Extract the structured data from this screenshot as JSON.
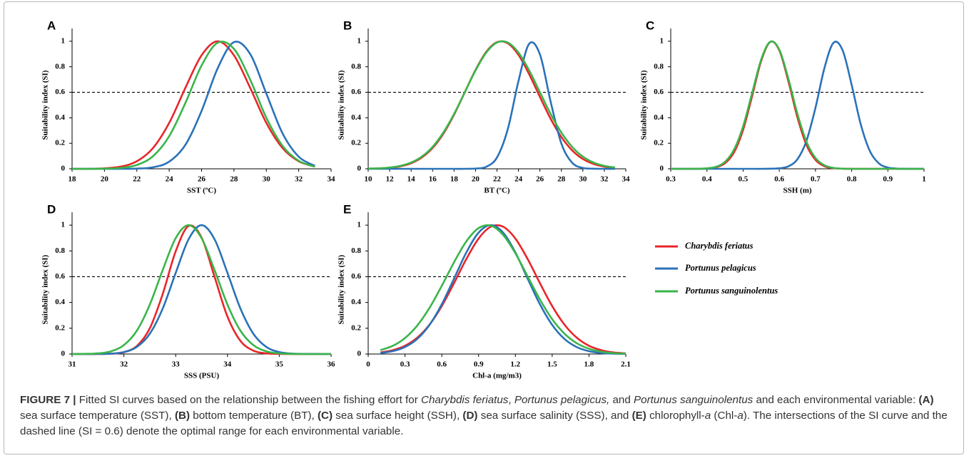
{
  "chart_data": [
    {
      "type": "line",
      "label": "A",
      "xlabel": "SST (ºC)",
      "ylabel": "Suitability index (SI)",
      "x": [
        18,
        19,
        20,
        21,
        22,
        23,
        24,
        25,
        26,
        27,
        28,
        29,
        30,
        31,
        32,
        33
      ],
      "series": [
        {
          "color": "#e8262a",
          "values": [
            0,
            0,
            0.004,
            0.017,
            0.059,
            0.163,
            0.36,
            0.635,
            0.89,
            1,
            0.89,
            0.635,
            0.36,
            0.163,
            0.059,
            0.017
          ]
        },
        {
          "color": "#2a72b8",
          "values": [
            0,
            0,
            0,
            0,
            0.002,
            0.012,
            0.056,
            0.188,
            0.454,
            0.79,
            0.993,
            0.9,
            0.59,
            0.278,
            0.095,
            0.023
          ]
        },
        {
          "color": "#3ab54a",
          "values": [
            0,
            0,
            0.001,
            0.007,
            0.03,
            0.099,
            0.256,
            0.516,
            0.81,
            0.989,
            0.94,
            0.7,
            0.4,
            0.18,
            0.063,
            0.017
          ]
        }
      ],
      "xlim": [
        18,
        34
      ],
      "xticks": [
        18,
        20,
        22,
        24,
        26,
        28,
        30,
        32,
        34
      ],
      "ylim": [
        0,
        1.1
      ],
      "yticks": [
        0,
        0.2,
        0.4,
        0.6,
        0.8,
        1
      ],
      "hline": 0.6
    },
    {
      "type": "line",
      "label": "B",
      "xlabel": "BT (ºC)",
      "ylabel": "Suitability index (SI)",
      "x": [
        10,
        11,
        12,
        13,
        14,
        15,
        16,
        17,
        18,
        19,
        20,
        21,
        22,
        23,
        24,
        25,
        26,
        27,
        28,
        29,
        30,
        31,
        32,
        33
      ],
      "series": [
        {
          "color": "#e8262a",
          "values": [
            0.001,
            0.003,
            0.008,
            0.02,
            0.044,
            0.089,
            0.163,
            0.275,
            0.424,
            0.6,
            0.775,
            0.917,
            0.993,
            0.984,
            0.893,
            0.741,
            0.564,
            0.392,
            0.249,
            0.145,
            0.077,
            0.038,
            0.017,
            0.007
          ]
        },
        {
          "color": "#2a72b8",
          "values": [
            0,
            0,
            0,
            0,
            0,
            0,
            0,
            0,
            0,
            0,
            0.002,
            0.016,
            0.089,
            0.309,
            0.687,
            0.98,
            0.897,
            0.526,
            0.198,
            0.048,
            0.007,
            0.001,
            0,
            0
          ]
        },
        {
          "color": "#3ab54a",
          "values": [
            0.002,
            0.004,
            0.01,
            0.023,
            0.049,
            0.096,
            0.172,
            0.284,
            0.43,
            0.6,
            0.771,
            0.911,
            0.99,
            0.99,
            0.911,
            0.771,
            0.6,
            0.43,
            0.284,
            0.172,
            0.096,
            0.049,
            0.023,
            0.01
          ]
        }
      ],
      "xlim": [
        10,
        34
      ],
      "xticks": [
        10,
        12,
        14,
        16,
        18,
        20,
        22,
        24,
        26,
        28,
        30,
        32,
        34
      ],
      "ylim": [
        0,
        1.1
      ],
      "yticks": [
        0,
        0.2,
        0.4,
        0.6,
        0.8,
        1
      ],
      "hline": 0.6
    },
    {
      "type": "line",
      "label": "C",
      "xlabel": "SSH (m)",
      "ylabel": "Suitability index (SI)",
      "x": [
        0.3,
        0.325,
        0.35,
        0.375,
        0.4,
        0.425,
        0.45,
        0.475,
        0.5,
        0.525,
        0.55,
        0.575,
        0.6,
        0.625,
        0.65,
        0.675,
        0.7,
        0.725,
        0.75,
        0.775,
        0.8,
        0.825,
        0.85,
        0.875,
        0.9,
        0.925,
        0.95,
        0.975,
        1
      ],
      "series": [
        {
          "color": "#e8262a",
          "values": [
            0,
            0,
            0,
            0,
            0.002,
            0.012,
            0.044,
            0.13,
            0.306,
            0.571,
            0.846,
            0.995,
            0.929,
            0.687,
            0.404,
            0.188,
            0.07,
            0.02,
            0.005,
            0.001,
            0,
            0,
            0,
            0,
            0,
            0,
            0,
            0,
            0
          ]
        },
        {
          "color": "#2a72b8",
          "values": [
            0,
            0,
            0,
            0,
            0,
            0,
            0,
            0,
            0,
            0,
            0,
            0.001,
            0.004,
            0.019,
            0.075,
            0.219,
            0.479,
            0.793,
            0.989,
            0.929,
            0.658,
            0.35,
            0.141,
            0.043,
            0.01,
            0.002,
            0,
            0,
            0
          ]
        },
        {
          "color": "#3ab54a",
          "values": [
            0,
            0,
            0,
            0.001,
            0.004,
            0.016,
            0.055,
            0.151,
            0.333,
            0.595,
            0.857,
            0.996,
            0.934,
            0.707,
            0.432,
            0.213,
            0.085,
            0.027,
            0.007,
            0.001,
            0,
            0,
            0,
            0,
            0,
            0,
            0,
            0,
            0
          ]
        }
      ],
      "xlim": [
        0.3,
        1
      ],
      "xticks": [
        0.3,
        0.4,
        0.5,
        0.6,
        0.7,
        0.8,
        0.9,
        1
      ],
      "ylim": [
        0,
        1.1
      ],
      "yticks": [
        0,
        0.2,
        0.4,
        0.6,
        0.8,
        1
      ],
      "hline": 0.6
    },
    {
      "type": "line",
      "label": "D",
      "xlabel": "SSS (PSU)",
      "ylabel": "Suitability index (SI)",
      "x": [
        31,
        31.25,
        31.5,
        31.75,
        32,
        32.25,
        32.5,
        32.75,
        33,
        33.25,
        33.5,
        33.75,
        34,
        34.25,
        34.5,
        34.75,
        35,
        35.25,
        35.5,
        35.75,
        36
      ],
      "series": [
        {
          "color": "#e8262a",
          "values": [
            0,
            0,
            0,
            0.002,
            0.014,
            0.062,
            0.199,
            0.466,
            0.797,
            0.994,
            0.904,
            0.6,
            0.29,
            0.102,
            0.026,
            0.005,
            0.001,
            0,
            0,
            0,
            0
          ]
        },
        {
          "color": "#2a72b8",
          "values": [
            0,
            0,
            0.001,
            0.003,
            0.015,
            0.055,
            0.157,
            0.353,
            0.629,
            0.891,
            1,
            0.891,
            0.629,
            0.353,
            0.157,
            0.055,
            0.015,
            0.003,
            0.001,
            0,
            0
          ]
        },
        {
          "color": "#3ab54a",
          "values": [
            0,
            0.001,
            0.005,
            0.021,
            0.069,
            0.181,
            0.383,
            0.652,
            0.899,
            1,
            0.899,
            0.652,
            0.383,
            0.181,
            0.069,
            0.021,
            0.005,
            0.001,
            0,
            0,
            0
          ]
        }
      ],
      "xlim": [
        31,
        36
      ],
      "xticks": [
        31,
        32,
        33,
        34,
        35,
        36
      ],
      "ylim": [
        0,
        1.1
      ],
      "yticks": [
        0,
        0.2,
        0.4,
        0.6,
        0.8,
        1
      ],
      "hline": 0.6
    },
    {
      "type": "line",
      "label": "E",
      "xlabel": "Chl-a (mg/m3)",
      "ylabel": "Suitability index (SI)",
      "x": [
        0.1,
        0.2,
        0.3,
        0.4,
        0.5,
        0.6,
        0.7,
        0.8,
        0.9,
        1,
        1.1,
        1.2,
        1.3,
        1.4,
        1.5,
        1.6,
        1.7,
        1.8,
        1.9,
        2,
        2.1
      ],
      "series": [
        {
          "name": "Charybdis feriatus",
          "color": "#e8262a",
          "values": [
            0.012,
            0.03,
            0.064,
            0.127,
            0.228,
            0.372,
            0.55,
            0.737,
            0.896,
            0.988,
            0.988,
            0.896,
            0.737,
            0.55,
            0.372,
            0.228,
            0.127,
            0.064,
            0.03,
            0.012,
            0.005
          ]
        },
        {
          "name": "Portunus pelagicus",
          "color": "#2a72b8",
          "values": [
            0.008,
            0.022,
            0.054,
            0.117,
            0.226,
            0.386,
            0.585,
            0.788,
            0.942,
            1,
            0.942,
            0.788,
            0.585,
            0.386,
            0.226,
            0.117,
            0.054,
            0.022,
            0.008,
            0.003,
            0.001
          ]
        },
        {
          "name": "Portunus sanguinolentus",
          "color": "#3ab54a",
          "values": [
            0.03,
            0.063,
            0.124,
            0.221,
            0.358,
            0.529,
            0.712,
            0.874,
            0.977,
            0.996,
            0.924,
            0.782,
            0.602,
            0.423,
            0.27,
            0.158,
            0.084,
            0.041,
            0.018,
            0.007,
            0.003
          ]
        }
      ],
      "xlim": [
        0,
        2.1
      ],
      "xticks": [
        0,
        0.3,
        0.6,
        0.9,
        1.2,
        1.5,
        1.8,
        2.1
      ],
      "ylim": [
        0,
        1.1
      ],
      "yticks": [
        0,
        0.2,
        0.4,
        0.6,
        0.8,
        1
      ],
      "hline": 0.6,
      "legend": "right"
    }
  ],
  "caption": {
    "runs": [
      "FIGURE 7 |",
      " Fitted SI curves based on the relationship between the fishing effort for ",
      "Charybdis feriatus",
      ", ",
      "Portunus pelagicus,",
      " and ",
      "Portunus sanguinolentus",
      " and each environmental variable: ",
      "(A)",
      " sea surface temperature (SST), ",
      "(B)",
      " bottom temperature (BT), ",
      "(C)",
      " sea surface height (SSH), ",
      "(D)",
      " sea surface salinity (SSS), and ",
      "(E)",
      " chlorophyll-",
      "a",
      " (Chl-",
      "a",
      "). The intersections of the SI curve and the dashed line (SI = 0.6) denote the optimal range for each environmental variable."
    ]
  }
}
